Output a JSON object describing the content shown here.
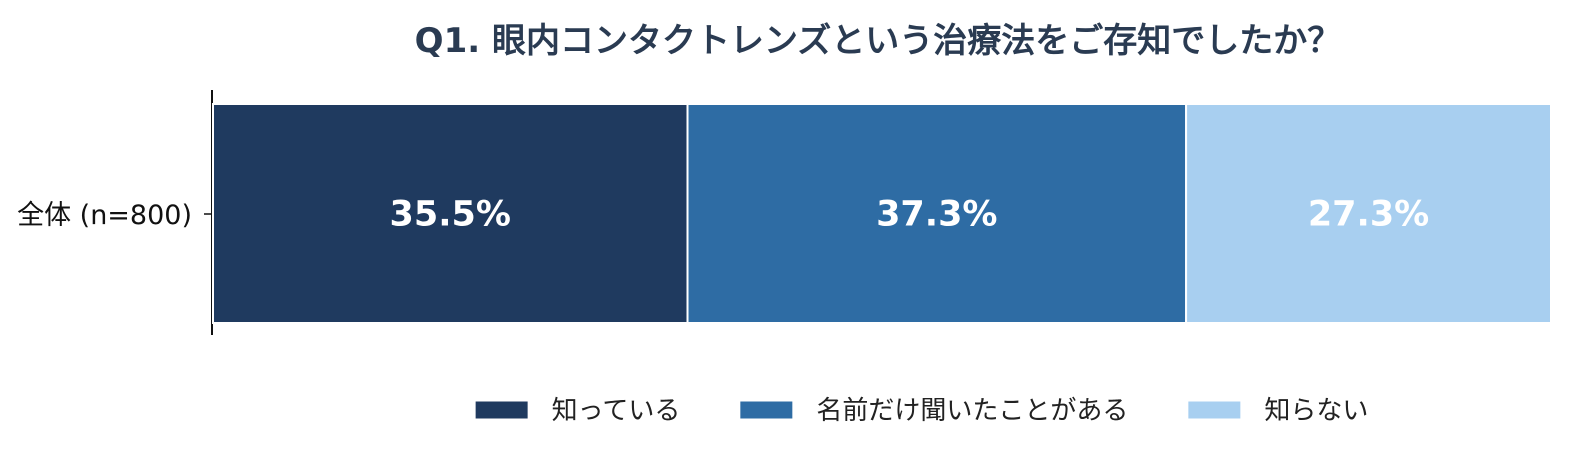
{
  "chart_data": {
    "type": "bar",
    "orientation": "horizontal-stacked",
    "title": "Q1. 眼内コンタクトレンズという治療法をご存知でしたか？",
    "categories": [
      "全体 (n=800)"
    ],
    "series": [
      {
        "name": "知っている",
        "values": [
          35.5
        ],
        "label": "35.5%",
        "color": "#1f3a5f"
      },
      {
        "name": "名前だけ聞いたことがある",
        "values": [
          37.3
        ],
        "label": "37.3%",
        "color": "#2e6ca4"
      },
      {
        "name": "知らない",
        "values": [
          27.3
        ],
        "label": "27.3%",
        "color": "#a8cff0"
      }
    ],
    "xlim": [
      0,
      100.1
    ],
    "grid": false,
    "legend": "bottom"
  }
}
